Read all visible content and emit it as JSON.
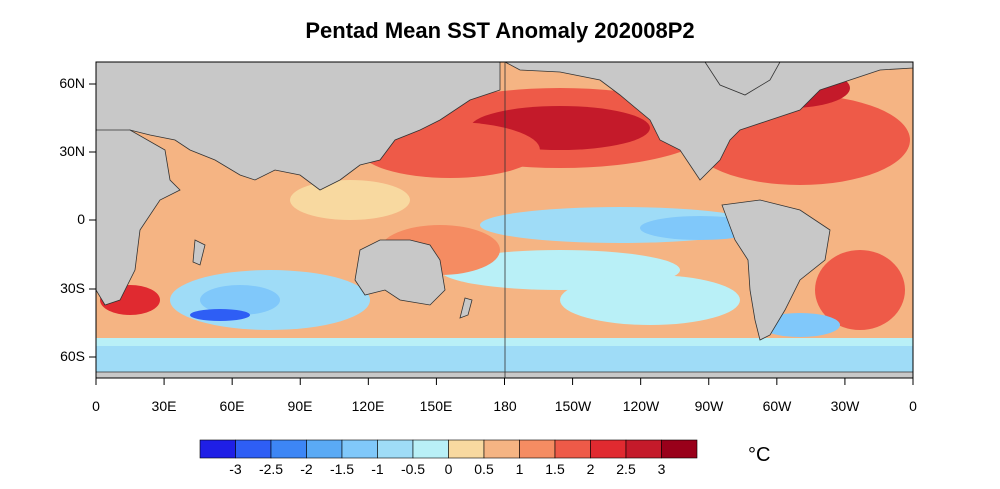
{
  "title": "Pentad Mean SST Anomaly 202008P2",
  "y_ticks": [
    "60N",
    "30N",
    "0",
    "30S",
    "60S"
  ],
  "x_ticks": [
    "0",
    "30E",
    "60E",
    "90E",
    "120E",
    "150E",
    "180",
    "150W",
    "120W",
    "90W",
    "60W",
    "30W",
    "0"
  ],
  "colorbar": {
    "labels": [
      "-3",
      "-2.5",
      "-2",
      "-1.5",
      "-1",
      "-0.5",
      "0",
      "0.5",
      "1",
      "1.5",
      "2",
      "2.5",
      "3"
    ],
    "colors": [
      "#1f1fe6",
      "#2e5ef5",
      "#3d86f5",
      "#5aaaf5",
      "#80c8fa",
      "#9fdcf7",
      "#b9f0f7",
      "#f8d9a0",
      "#f5b483",
      "#f58c62",
      "#ee5a48",
      "#e02a30",
      "#c41a2a",
      "#99001a"
    ],
    "units": "°C"
  },
  "land_color": "#c8c8c8"
}
